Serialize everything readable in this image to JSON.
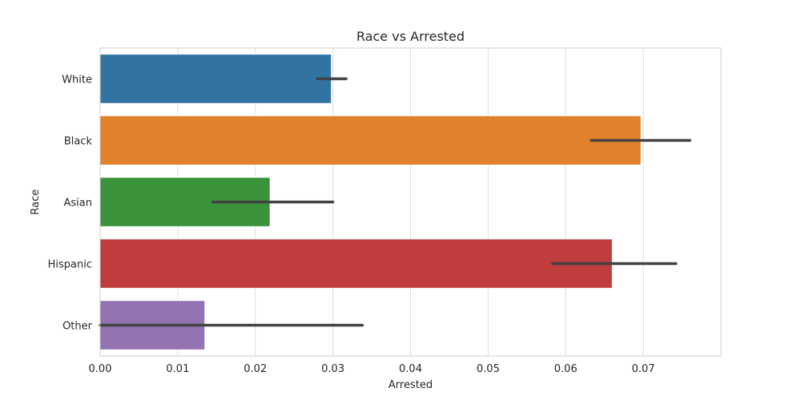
{
  "chart_data": {
    "type": "bar",
    "orientation": "horizontal",
    "title": "Race vs Arrested",
    "xlabel": "Arrested",
    "ylabel": "Race",
    "xlim": [
      0,
      0.08
    ],
    "xticks": [
      "0.00",
      "0.01",
      "0.02",
      "0.03",
      "0.04",
      "0.05",
      "0.06",
      "0.07"
    ],
    "grid": true,
    "categories": [
      "White",
      "Black",
      "Asian",
      "Hispanic",
      "Other"
    ],
    "values": [
      0.0298,
      0.0697,
      0.0219,
      0.066,
      0.0135
    ],
    "error_bars": [
      [
        0.028,
        0.0317
      ],
      [
        0.0633,
        0.076
      ],
      [
        0.0145,
        0.03
      ],
      [
        0.0583,
        0.0742
      ],
      [
        0.0,
        0.0338
      ]
    ],
    "colors": [
      "#3274a1",
      "#e1812c",
      "#3a923a",
      "#c03d3e",
      "#9372b2"
    ]
  }
}
